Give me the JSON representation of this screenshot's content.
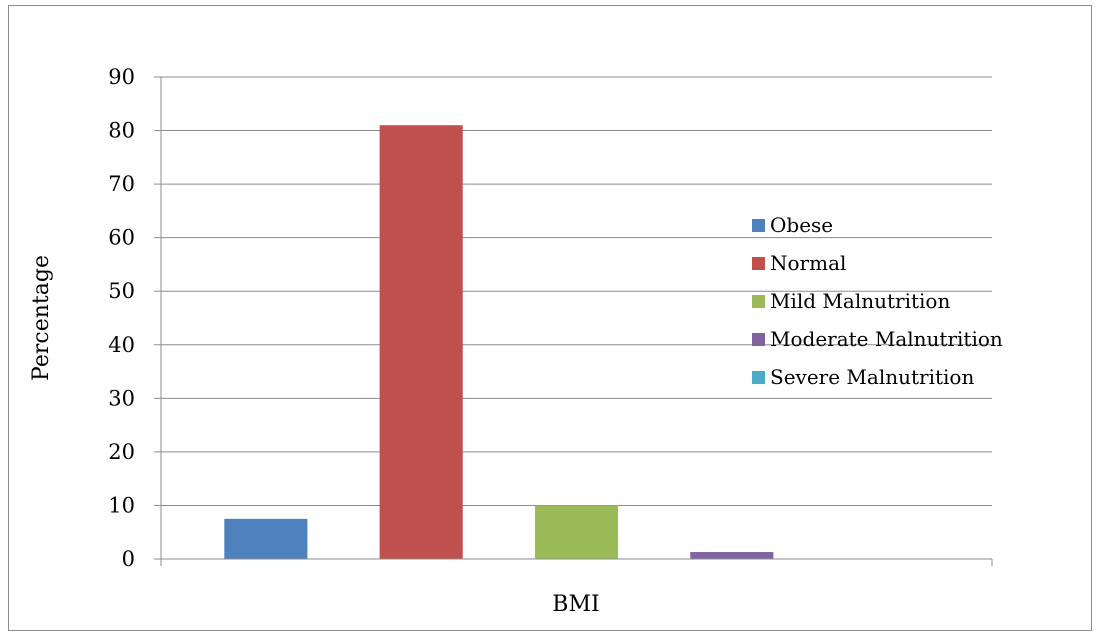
{
  "chart_data": {
    "type": "bar",
    "title": "",
    "xlabel": "BMI",
    "ylabel": "Percentage",
    "ylim": [
      0,
      90
    ],
    "yticks": [
      0,
      10,
      20,
      30,
      40,
      50,
      60,
      70,
      80,
      90
    ],
    "grid": true,
    "legend_position": "right",
    "categories": [
      "BMI"
    ],
    "series": [
      {
        "name": "Obese",
        "values": [
          7.5
        ],
        "color": "#4f81bd"
      },
      {
        "name": "Normal",
        "values": [
          81
        ],
        "color": "#c0504d"
      },
      {
        "name": "Mild Malnutrition",
        "values": [
          10
        ],
        "color": "#9bbb59"
      },
      {
        "name": "Moderate Malnutrition",
        "values": [
          1.3
        ],
        "color": "#8064a2"
      },
      {
        "name": "Severe Malnutrition",
        "values": [
          0
        ],
        "color": "#4bacc6"
      }
    ]
  }
}
